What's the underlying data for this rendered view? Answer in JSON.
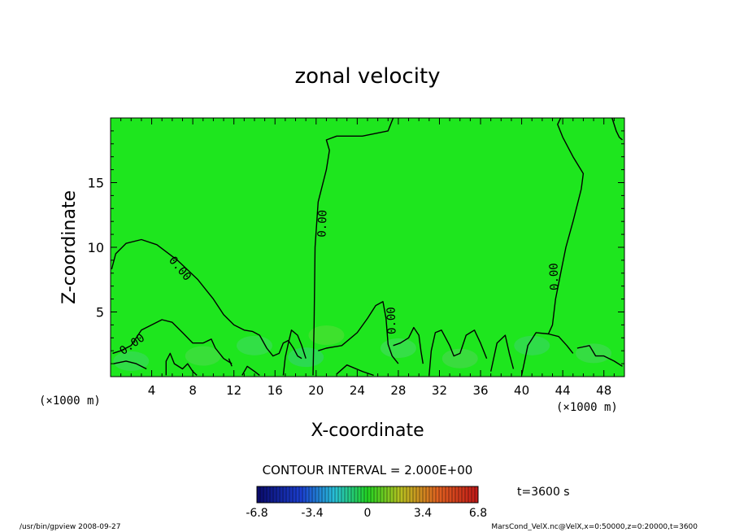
{
  "chart_data": {
    "type": "heatmap",
    "title": "zonal velocity",
    "xlabel": "X-coordinate",
    "ylabel": "Z-coordinate",
    "x_units_left": "(×1000 m)",
    "x_units_right": "(×1000 m)",
    "xlim": [
      0,
      50
    ],
    "ylim": [
      0,
      20
    ],
    "xticks": [
      4,
      8,
      12,
      16,
      20,
      24,
      28,
      32,
      36,
      40,
      44,
      48
    ],
    "yticks": [
      5,
      10,
      15
    ],
    "contour_interval_label": "CONTOUR INTERVAL = 2.000E+00",
    "contour_labels": [
      "0.00",
      "0.00",
      "0.00",
      "0.00",
      "0.00"
    ],
    "contours_zero": [
      [
        [
          0.1,
          8.3
        ],
        [
          0.5,
          9.5
        ],
        [
          1.5,
          10.3
        ],
        [
          3,
          10.6
        ],
        [
          4.5,
          10.2
        ],
        [
          6.5,
          9.0
        ],
        [
          8.5,
          7.5
        ],
        [
          10,
          6.0
        ],
        [
          11,
          4.8
        ],
        [
          12,
          4.0
        ],
        [
          13,
          3.6
        ],
        [
          13.8,
          3.5
        ],
        [
          14.5,
          3.2
        ],
        [
          15.2,
          2.2
        ],
        [
          15.8,
          1.6
        ],
        [
          16.4,
          1.8
        ],
        [
          16.8,
          2.6
        ],
        [
          17.3,
          2.8
        ],
        [
          17.8,
          2.2
        ],
        [
          18.2,
          1.6
        ],
        [
          18.6,
          1.4
        ]
      ],
      [
        [
          19.7,
          0.1
        ],
        [
          19.8,
          4.0
        ],
        [
          19.9,
          10.0
        ],
        [
          20.2,
          13.5
        ],
        [
          21.0,
          16.0
        ],
        [
          21.3,
          17.5
        ],
        [
          21.0,
          18.3
        ],
        [
          22.0,
          18.6
        ],
        [
          24.5,
          18.6
        ],
        [
          27.0,
          19.0
        ],
        [
          27.5,
          20.0
        ]
      ],
      [
        [
          48.8,
          20.0
        ],
        [
          49.2,
          19.0
        ],
        [
          49.5,
          18.5
        ],
        [
          49.8,
          18.3
        ]
      ],
      [
        [
          43.8,
          20.0
        ],
        [
          43.5,
          19.5
        ],
        [
          44.0,
          18.5
        ],
        [
          45.0,
          17.0
        ],
        [
          46.0,
          15.7
        ],
        [
          45.8,
          14.5
        ],
        [
          45.0,
          12.0
        ],
        [
          44.3,
          10.0
        ],
        [
          43.8,
          8.0
        ],
        [
          43.3,
          6.0
        ],
        [
          43.0,
          4.0
        ],
        [
          42.6,
          3.3
        ]
      ],
      [
        [
          0.2,
          1.8
        ],
        [
          1.0,
          2.0
        ],
        [
          2.0,
          2.4
        ],
        [
          3.0,
          3.6
        ],
        [
          4.0,
          4.0
        ],
        [
          5.0,
          4.4
        ],
        [
          6.0,
          4.2
        ],
        [
          7.0,
          3.4
        ],
        [
          8.0,
          2.6
        ],
        [
          9.0,
          2.6
        ],
        [
          9.8,
          2.9
        ],
        [
          10.2,
          2.2
        ],
        [
          11.0,
          1.4
        ],
        [
          11.8,
          1.0
        ]
      ],
      [
        [
          20.2,
          2.0
        ],
        [
          21.0,
          2.2
        ],
        [
          22.5,
          2.4
        ],
        [
          24.0,
          3.4
        ],
        [
          25.0,
          4.5
        ],
        [
          25.8,
          5.5
        ],
        [
          26.5,
          5.8
        ],
        [
          26.8,
          4.5
        ],
        [
          27.0,
          2.5
        ],
        [
          27.4,
          1.6
        ],
        [
          28.0,
          1.0
        ]
      ],
      [
        [
          0.3,
          1.0
        ],
        [
          1.5,
          1.2
        ],
        [
          2.5,
          1.0
        ],
        [
          3.5,
          0.6
        ]
      ],
      [
        [
          5.4,
          0.1
        ],
        [
          5.4,
          1.2
        ],
        [
          5.8,
          1.8
        ],
        [
          6.2,
          1.0
        ],
        [
          7.0,
          0.6
        ],
        [
          7.5,
          1.0
        ],
        [
          8.0,
          0.4
        ],
        [
          8.4,
          0.1
        ]
      ],
      [
        [
          16.8,
          0.1
        ],
        [
          17.0,
          1.5
        ],
        [
          17.3,
          2.6
        ],
        [
          17.6,
          3.6
        ],
        [
          18.2,
          3.2
        ],
        [
          18.6,
          2.4
        ],
        [
          19.0,
          1.4
        ]
      ],
      [
        [
          27.5,
          2.4
        ],
        [
          28.2,
          2.6
        ],
        [
          29.0,
          3.0
        ],
        [
          29.5,
          3.8
        ],
        [
          30.0,
          3.2
        ],
        [
          30.2,
          2.0
        ],
        [
          30.4,
          1.0
        ]
      ],
      [
        [
          31.0,
          0.1
        ],
        [
          31.2,
          2.0
        ],
        [
          31.6,
          3.4
        ],
        [
          32.2,
          3.6
        ],
        [
          33.0,
          2.4
        ],
        [
          33.4,
          1.6
        ],
        [
          34.0,
          1.8
        ],
        [
          34.6,
          3.2
        ],
        [
          35.4,
          3.6
        ],
        [
          36.0,
          2.6
        ],
        [
          36.6,
          1.4
        ]
      ],
      [
        [
          37.0,
          0.4
        ],
        [
          37.6,
          2.6
        ],
        [
          38.4,
          3.2
        ],
        [
          38.8,
          1.8
        ],
        [
          39.2,
          0.6
        ]
      ],
      [
        [
          40.0,
          0.1
        ],
        [
          40.6,
          2.4
        ],
        [
          41.4,
          3.4
        ],
        [
          42.6,
          3.3
        ],
        [
          43.6,
          3.1
        ],
        [
          44.4,
          2.4
        ],
        [
          45.0,
          1.8
        ]
      ],
      [
        [
          45.4,
          2.2
        ],
        [
          46.6,
          2.4
        ],
        [
          47.2,
          1.6
        ],
        [
          48.0,
          1.6
        ],
        [
          49.0,
          1.2
        ],
        [
          49.8,
          0.8
        ]
      ],
      [
        [
          11.5,
          1.4
        ],
        [
          11.8,
          0.8
        ]
      ],
      [
        [
          12.8,
          0.1
        ],
        [
          13.3,
          0.8
        ],
        [
          14.0,
          0.4
        ],
        [
          14.5,
          0.1
        ]
      ],
      [
        [
          22.0,
          0.2
        ],
        [
          23.0,
          0.9
        ],
        [
          24.5,
          0.4
        ],
        [
          25.6,
          0.1
        ]
      ]
    ],
    "colorbar": {
      "ticks": [
        "-6.8",
        "-3.4",
        "0",
        "3.4",
        "6.8"
      ],
      "min": -6.8,
      "max": 6.8
    }
  },
  "annotations": {
    "time": "t=3600 s",
    "footer_left": "/usr/bin/gpview   2008-09-27",
    "footer_right": "MarsCond_VelX.nc@VelX,x=0:50000,z=0:20000,t=3600"
  },
  "colors": {
    "field": "#1ee61e",
    "positive_small": "#44d95a",
    "contour": "#000000"
  }
}
